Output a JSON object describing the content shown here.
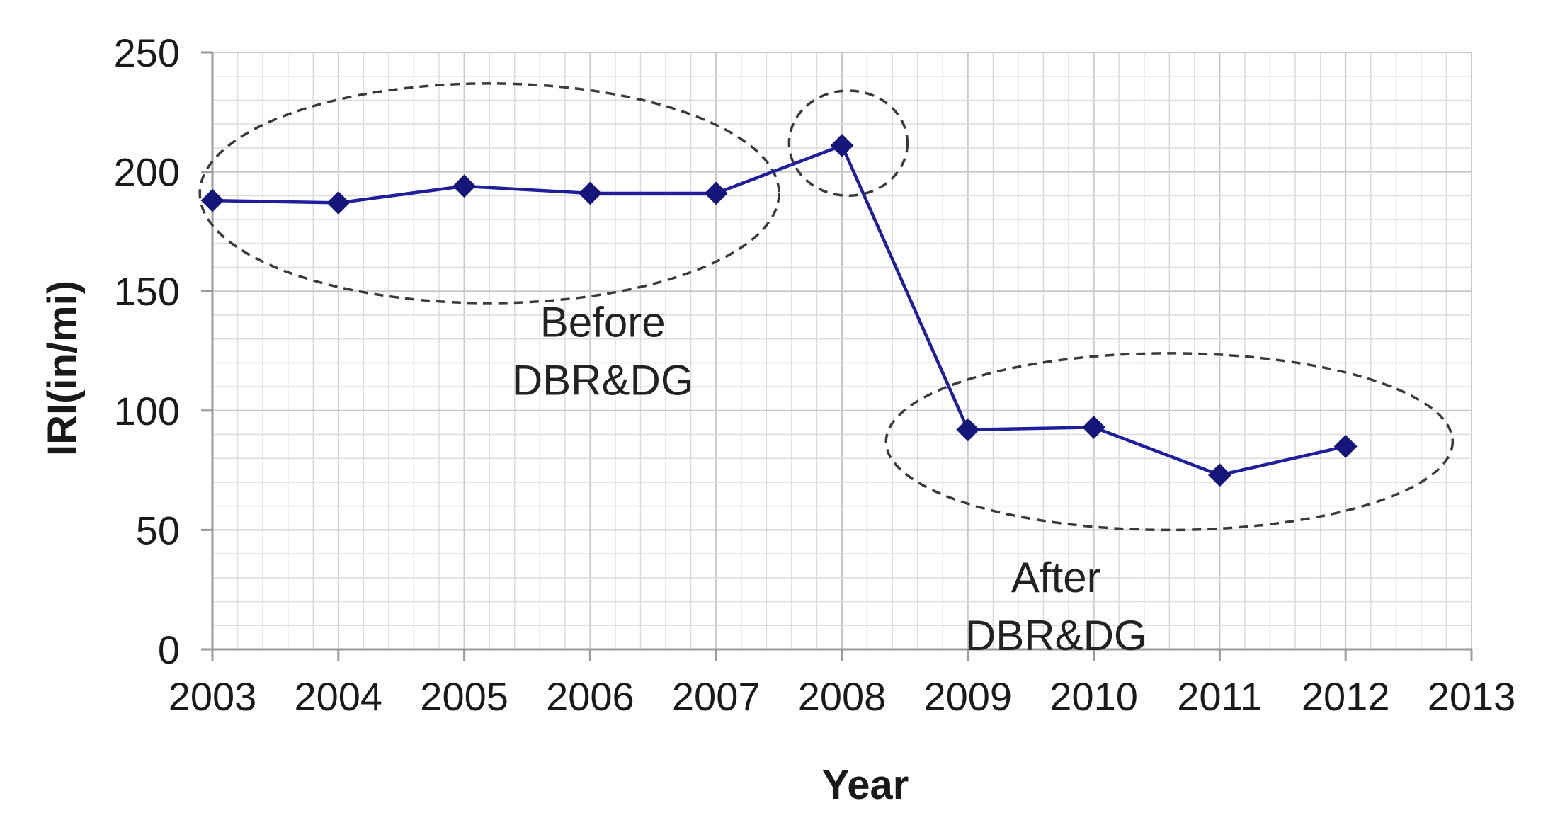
{
  "chart_data": {
    "type": "line",
    "title": "",
    "xlabel": "Year",
    "ylabel": "IRI(in/mi)",
    "xlim": [
      2003,
      2013
    ],
    "ylim": [
      0,
      250
    ],
    "x_ticks": [
      2003,
      2004,
      2005,
      2006,
      2007,
      2008,
      2009,
      2010,
      2011,
      2012,
      2013
    ],
    "y_ticks": [
      0,
      50,
      100,
      150,
      200,
      250
    ],
    "grid": true,
    "legend": "none",
    "series": [
      {
        "color": "#1f1f9e",
        "marker": "diamond",
        "x": [
          2003,
          2004,
          2005,
          2006,
          2007,
          2008,
          2009,
          2010,
          2011,
          2012
        ],
        "y": [
          188,
          187,
          194,
          191,
          191,
          211,
          92,
          93,
          73,
          85
        ]
      }
    ],
    "annotations": [
      {
        "name": "before",
        "lines": [
          "Before",
          "DBR&DG"
        ],
        "x": 2006.1,
        "y": 131
      },
      {
        "name": "after",
        "lines": [
          "After",
          "DBR&DG"
        ],
        "x": 2009.7,
        "y": 24
      }
    ],
    "highlight_regions": [
      {
        "name": "before-ellipse",
        "cx": 2005.2,
        "cy": 191,
        "rx": 2.3,
        "ry": 46
      },
      {
        "name": "peak-ellipse",
        "cx": 2008.05,
        "cy": 212,
        "rx": 0.47,
        "ry": 22
      },
      {
        "name": "after-ellipse",
        "cx": 2010.6,
        "cy": 87,
        "rx": 2.25,
        "ry": 37
      }
    ]
  }
}
